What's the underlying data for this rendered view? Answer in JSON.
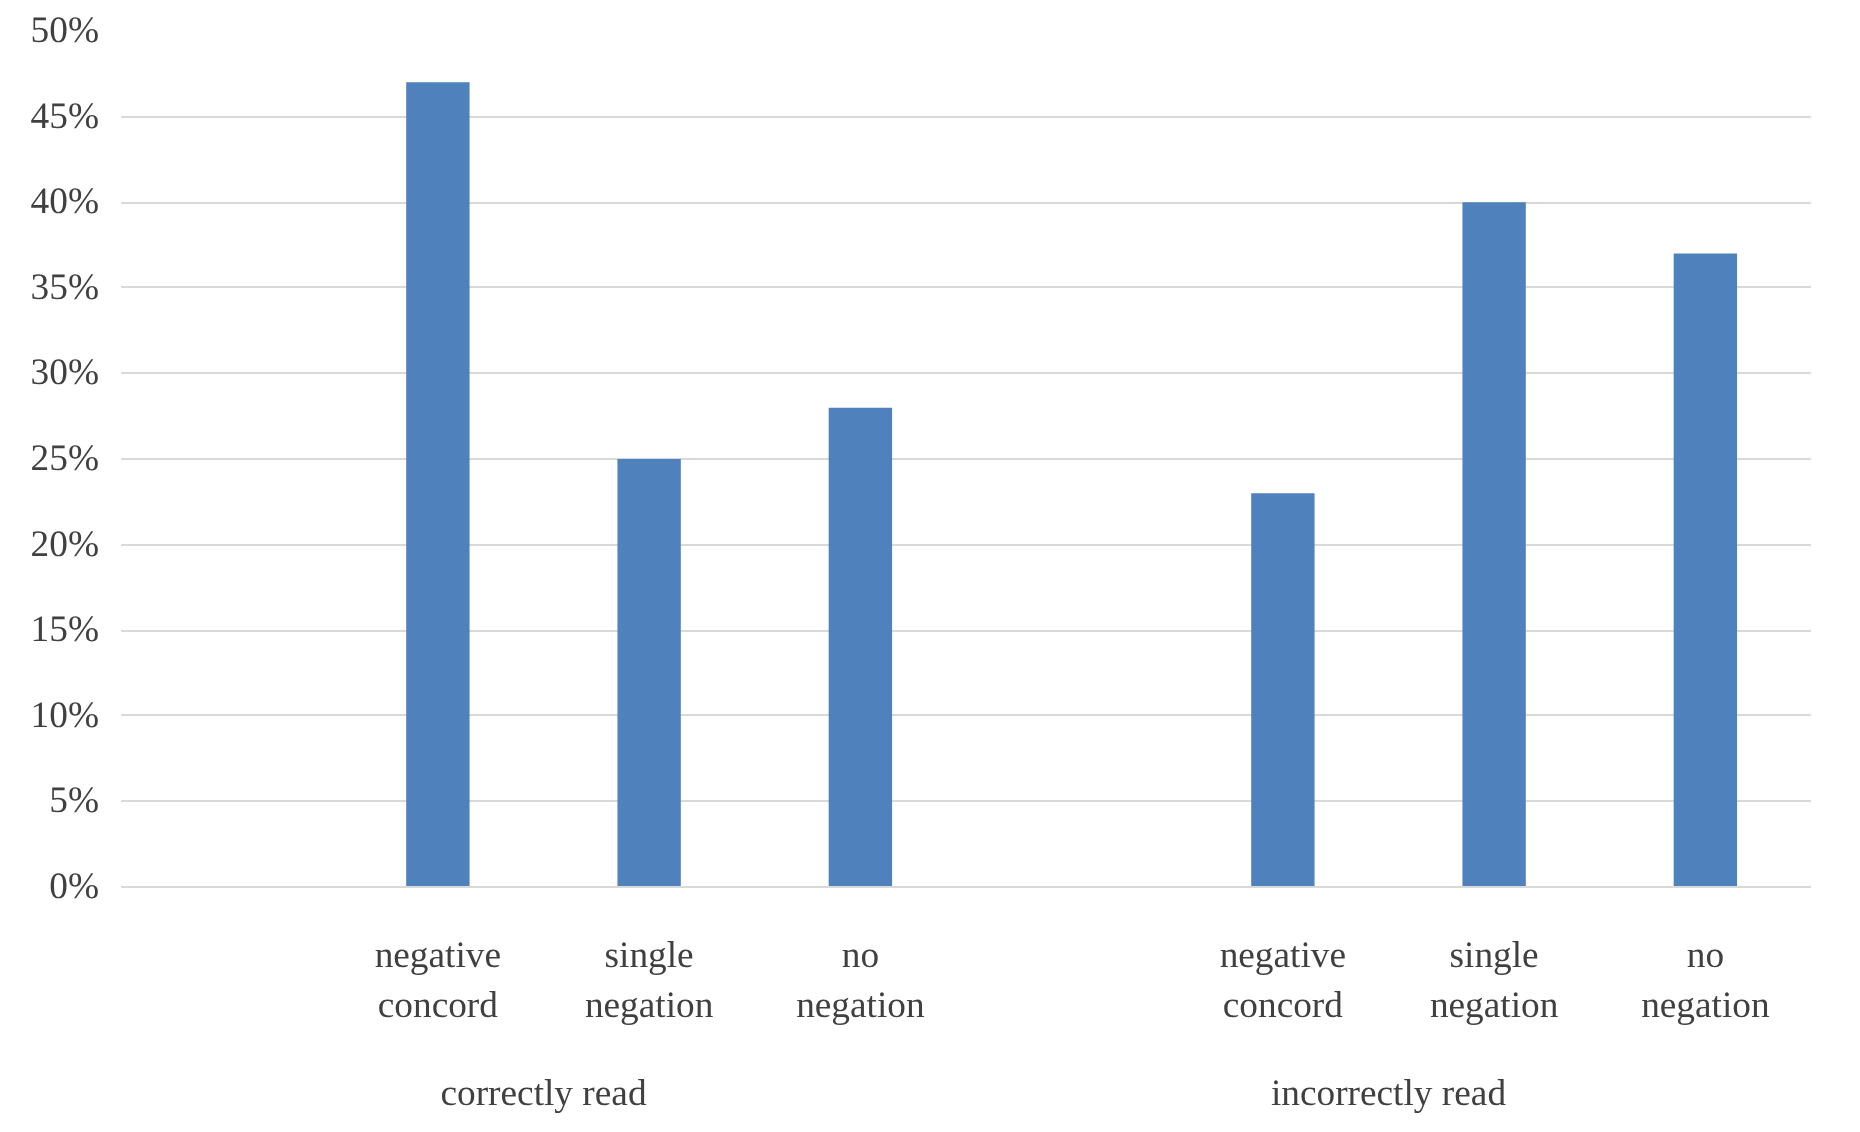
{
  "chart_data": {
    "type": "bar",
    "categories": [
      null,
      "negative concord",
      "single negation",
      "no negation",
      null,
      "negative concord",
      "single negation",
      "no negation"
    ],
    "values": [
      null,
      47,
      25,
      28,
      null,
      23,
      40,
      37
    ],
    "color": "#4f81bd",
    "ylim": [
      0,
      50
    ],
    "yticks": [
      {
        "value": 0,
        "label": "0%"
      },
      {
        "value": 5,
        "label": "5%"
      },
      {
        "value": 10,
        "label": "10%"
      },
      {
        "value": 15,
        "label": "15%"
      },
      {
        "value": 20,
        "label": "20%"
      },
      {
        "value": 25,
        "label": "25%"
      },
      {
        "value": 30,
        "label": "30%"
      },
      {
        "value": 35,
        "label": "35%"
      },
      {
        "value": 40,
        "label": "40%"
      },
      {
        "value": 45,
        "label": "45%"
      },
      {
        "value": 50,
        "label": "50%"
      }
    ],
    "annotations": [
      "correctly read",
      "incorrectly read"
    ],
    "grid": "y"
  }
}
